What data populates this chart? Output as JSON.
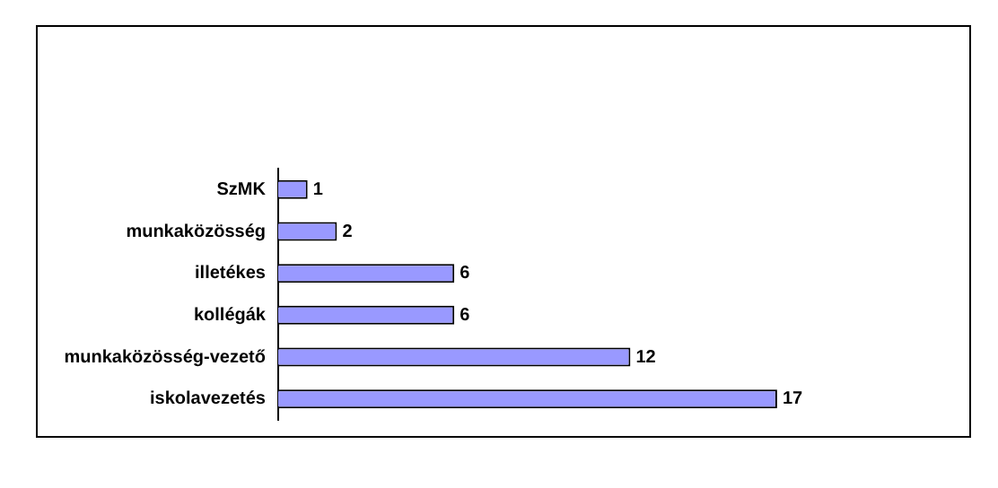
{
  "chart_data": {
    "type": "bar",
    "orientation": "horizontal",
    "categories": [
      "SzMK",
      "munkaközösség",
      "illetékes",
      "kollégák",
      "munkaközösség-vezető",
      "iskolavezetés"
    ],
    "values": [
      1,
      2,
      6,
      6,
      12,
      17
    ],
    "color": "#9999ff",
    "data_labels": true
  }
}
